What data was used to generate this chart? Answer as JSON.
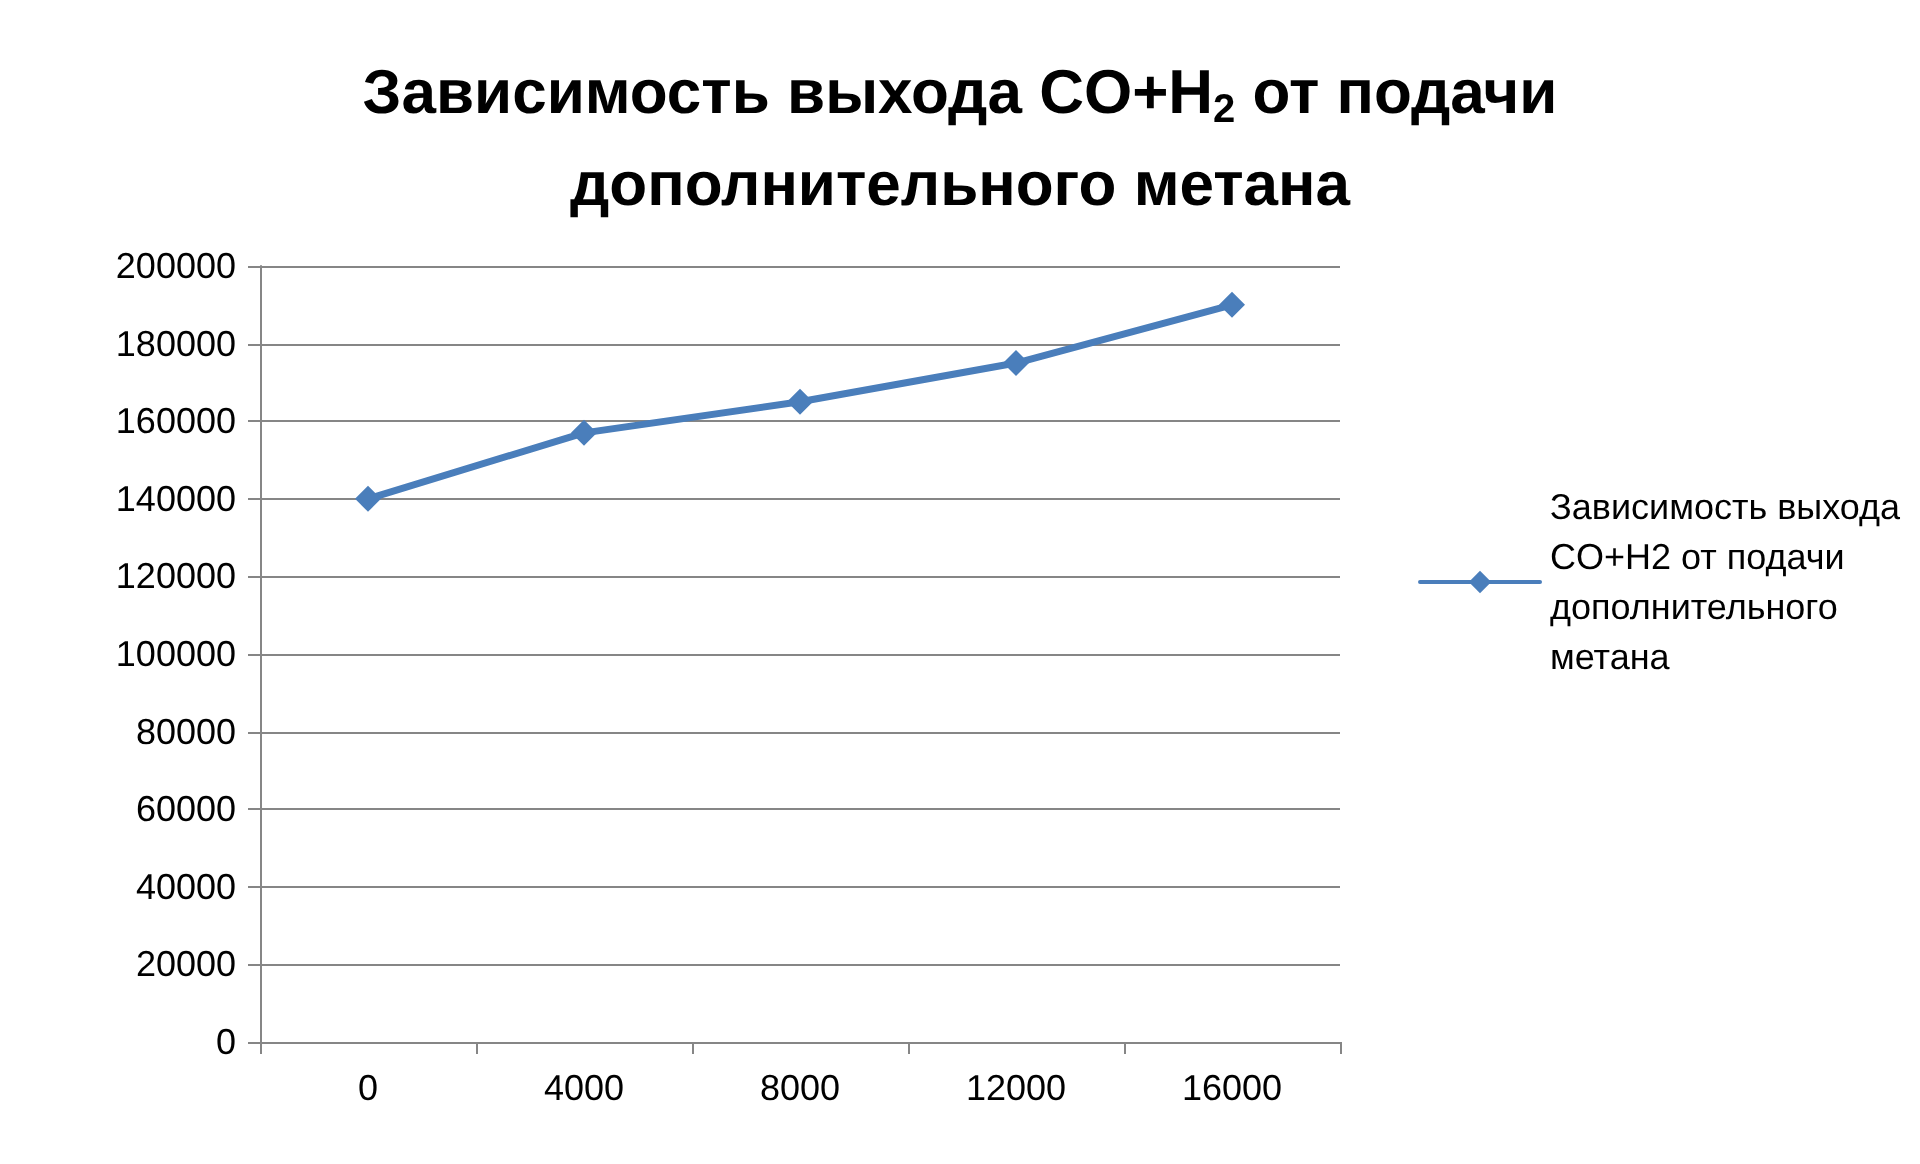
{
  "chart_data": {
    "type": "line",
    "title": "Зависимость выхода CO+H$_{2}$ от подачи дополнительного метана",
    "categories": [
      "0",
      "4000",
      "8000",
      "12000",
      "16000"
    ],
    "series": [
      {
        "name": "Зависимость выхода CO+H2 от подачи дополнительного метана",
        "color": "#4a7ebb",
        "values": [
          140000,
          157000,
          165000,
          175000,
          190000
        ]
      }
    ],
    "ylim": [
      0,
      200000
    ],
    "yticks": [
      0,
      20000,
      40000,
      60000,
      80000,
      100000,
      120000,
      140000,
      160000,
      180000,
      200000
    ],
    "grid": "y",
    "legend": "right",
    "marker": "diamond",
    "line_style": "solid"
  }
}
